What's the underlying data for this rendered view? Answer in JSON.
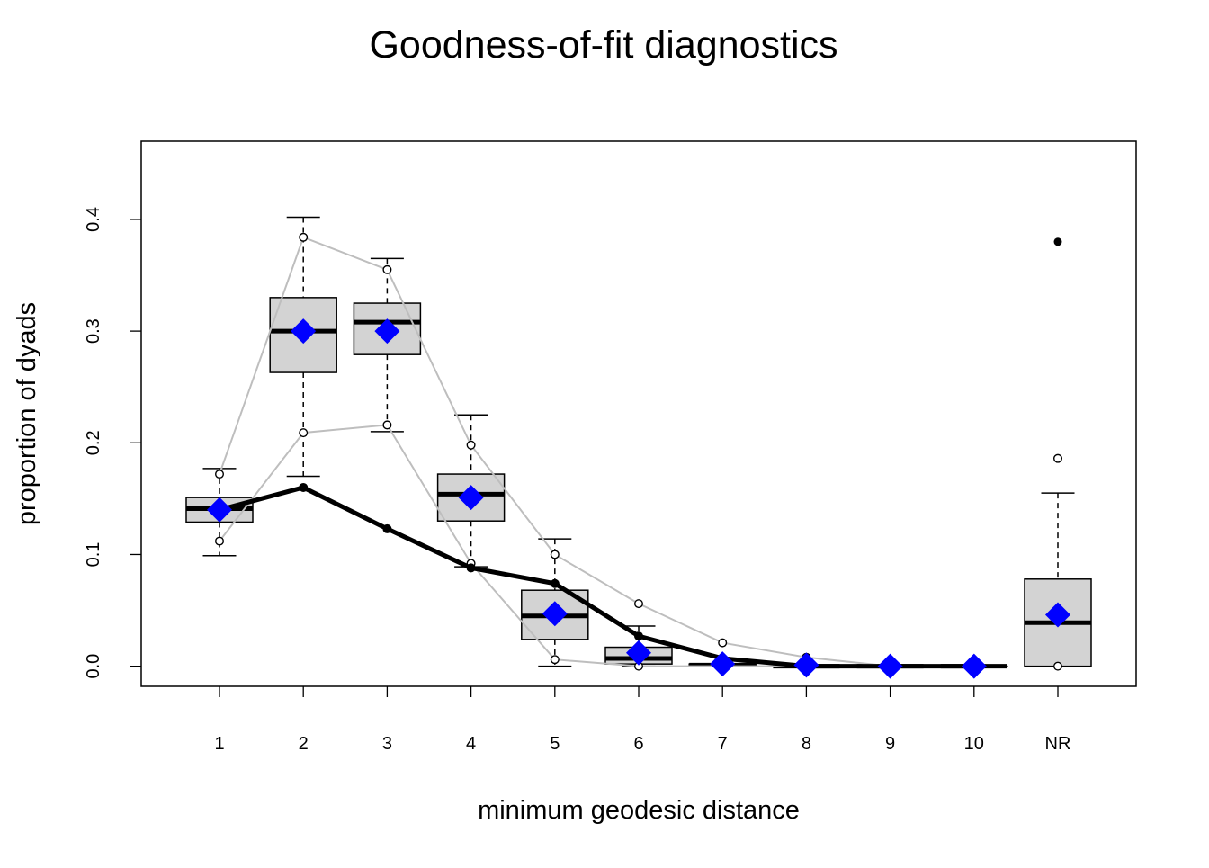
{
  "chart_data": {
    "type": "boxplot",
    "title": "Goodness-of-fit diagnostics",
    "xlabel": "minimum geodesic distance",
    "ylabel": "proportion of dyads",
    "categories": [
      "1",
      "2",
      "3",
      "4",
      "5",
      "6",
      "7",
      "8",
      "9",
      "10",
      "NR"
    ],
    "ylim": [
      -0.018,
      0.47
    ],
    "yticks": [
      0.0,
      0.1,
      0.2,
      0.3,
      0.4
    ],
    "ytick_labels": [
      "0.0",
      "0.1",
      "0.2",
      "0.3",
      "0.4"
    ],
    "grid": false,
    "colors": {
      "box_fill": "#d3d3d3",
      "box_border": "#000000",
      "observed_line": "#000000",
      "mean_marker": "#0000ff",
      "bounds_line": "#bebebe"
    },
    "boxes": [
      {
        "category": "1",
        "whisker_low": 0.099,
        "q1": 0.129,
        "median": 0.141,
        "q3": 0.151,
        "whisker_high": 0.177,
        "outliers": []
      },
      {
        "category": "2",
        "whisker_low": 0.17,
        "q1": 0.263,
        "median": 0.3,
        "q3": 0.33,
        "whisker_high": 0.402,
        "outliers": []
      },
      {
        "category": "3",
        "whisker_low": 0.21,
        "q1": 0.279,
        "median": 0.308,
        "q3": 0.325,
        "whisker_high": 0.365,
        "outliers": []
      },
      {
        "category": "4",
        "whisker_low": 0.089,
        "q1": 0.13,
        "median": 0.154,
        "q3": 0.172,
        "whisker_high": 0.225,
        "outliers": []
      },
      {
        "category": "5",
        "whisker_low": 0.0,
        "q1": 0.024,
        "median": 0.045,
        "q3": 0.068,
        "whisker_high": 0.114,
        "outliers": []
      },
      {
        "category": "6",
        "whisker_low": 0.0,
        "q1": 0.002,
        "median": 0.007,
        "q3": 0.017,
        "whisker_high": 0.036,
        "outliers": []
      },
      {
        "category": "7",
        "whisker_low": 0.0,
        "q1": 0.0,
        "median": 0.001,
        "q3": 0.002,
        "whisker_high": 0.002,
        "outliers": []
      },
      {
        "category": "8",
        "whisker_low": 0.0,
        "q1": 0.0,
        "median": 0.0,
        "q3": 0.0,
        "whisker_high": 0.0,
        "outliers": []
      },
      {
        "category": "9",
        "whisker_low": 0.0,
        "q1": 0.0,
        "median": 0.0,
        "q3": 0.0,
        "whisker_high": 0.0,
        "outliers": []
      },
      {
        "category": "10",
        "whisker_low": 0.0,
        "q1": 0.0,
        "median": 0.0,
        "q3": 0.0,
        "whisker_high": 0.0,
        "outliers": []
      },
      {
        "category": "NR",
        "whisker_low": 0.0,
        "q1": 0.0,
        "median": 0.039,
        "q3": 0.078,
        "whisker_high": 0.155,
        "outliers": [
          0.38
        ]
      }
    ],
    "observed": [
      0.14,
      0.16,
      0.123,
      0.088,
      0.074,
      0.027,
      0.007,
      0.0,
      0.0,
      0.0
    ],
    "simulated_mean": [
      0.14,
      0.3,
      0.3,
      0.151,
      0.047,
      0.012,
      0.002,
      0.001,
      0.0,
      0.0,
      0.046
    ],
    "upper_bound": [
      0.172,
      0.384,
      0.355,
      0.198,
      0.1,
      0.056,
      0.021,
      0.008,
      0.0,
      0.0
    ],
    "lower_bound": [
      0.112,
      0.209,
      0.216,
      0.092,
      0.006,
      0.0,
      0.0,
      0.0,
      0.0,
      0.0
    ],
    "nr_bounds": [
      0.186,
      0.0
    ]
  }
}
